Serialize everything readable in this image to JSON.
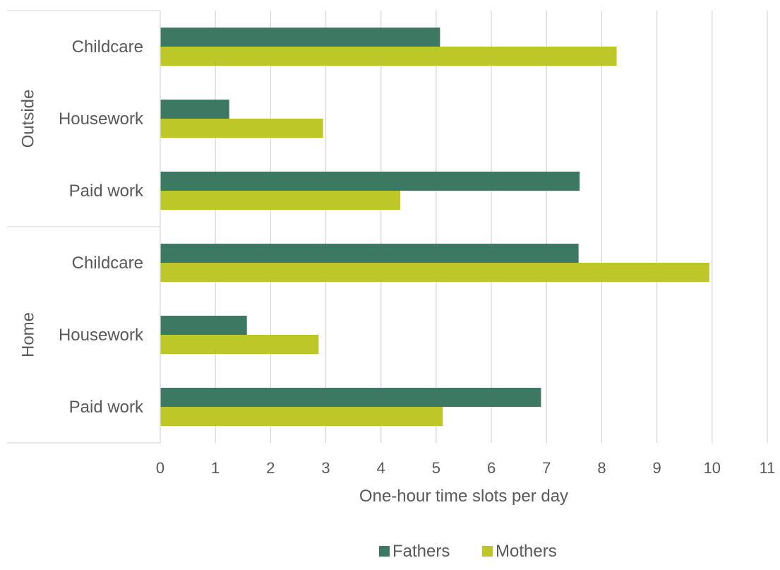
{
  "chart_data": {
    "type": "bar",
    "orientation": "horizontal",
    "title": "",
    "xlabel": "One-hour time slots per day",
    "ylabel": "",
    "xlim": [
      0,
      11
    ],
    "xticks": [
      "0",
      "1",
      "2",
      "3",
      "4",
      "5",
      "6",
      "7",
      "8",
      "9",
      "10",
      "11"
    ],
    "grid": true,
    "legend_position": "bottom",
    "groups": [
      {
        "name": "Outside",
        "categories": [
          "Childcare",
          "Housework",
          "Paid work"
        ]
      },
      {
        "name": "Home",
        "categories": [
          "Childcare",
          "Housework",
          "Paid work"
        ]
      }
    ],
    "series": [
      {
        "name": "Fathers",
        "color": "#3d7863",
        "values": [
          5.07,
          1.25,
          7.6,
          7.58,
          1.57,
          6.9
        ]
      },
      {
        "name": "Mothers",
        "color": "#bdc727",
        "values": [
          8.27,
          2.95,
          4.35,
          9.95,
          2.87,
          5.12
        ]
      }
    ]
  }
}
